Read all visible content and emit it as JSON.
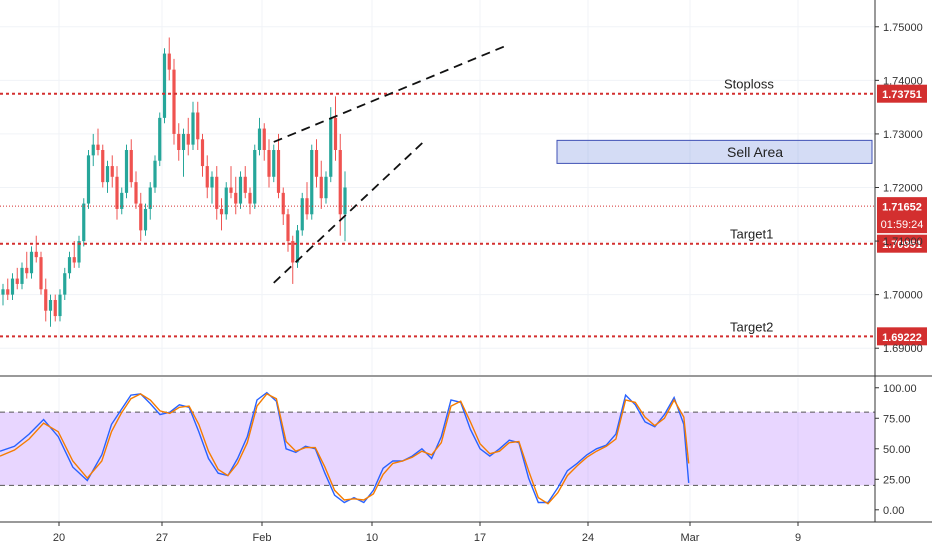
{
  "chart_data": {
    "type": "candlestick",
    "main": {
      "y_range": [
        1.685,
        1.755
      ],
      "y_ticks": [
        1.69,
        1.7,
        1.71,
        1.72,
        1.73,
        1.74,
        1.75
      ],
      "y_tick_labels": [
        "1.69000",
        "1.70000",
        "1.71000",
        "1.72000",
        "1.73000",
        "1.74000",
        "1.75000"
      ],
      "x_labels": [
        "20",
        "27",
        "Feb",
        "10",
        "17",
        "24",
        "Mar",
        "9"
      ],
      "candles": [
        [
          1.7,
          1.702,
          1.698,
          1.701
        ],
        [
          1.701,
          1.703,
          1.699,
          1.7
        ],
        [
          1.7,
          1.704,
          1.699,
          1.703
        ],
        [
          1.703,
          1.705,
          1.701,
          1.702
        ],
        [
          1.702,
          1.706,
          1.701,
          1.705
        ],
        [
          1.705,
          1.708,
          1.703,
          1.704
        ],
        [
          1.704,
          1.709,
          1.703,
          1.708
        ],
        [
          1.708,
          1.711,
          1.706,
          1.707
        ],
        [
          1.707,
          1.708,
          1.7,
          1.701
        ],
        [
          1.701,
          1.703,
          1.695,
          1.697
        ],
        [
          1.697,
          1.7,
          1.694,
          1.699
        ],
        [
          1.699,
          1.7,
          1.695,
          1.696
        ],
        [
          1.696,
          1.701,
          1.695,
          1.7
        ],
        [
          1.7,
          1.705,
          1.699,
          1.704
        ],
        [
          1.704,
          1.708,
          1.703,
          1.707
        ],
        [
          1.707,
          1.71,
          1.705,
          1.706
        ],
        [
          1.706,
          1.711,
          1.705,
          1.71
        ],
        [
          1.71,
          1.718,
          1.709,
          1.717
        ],
        [
          1.717,
          1.727,
          1.716,
          1.726
        ],
        [
          1.726,
          1.73,
          1.724,
          1.728
        ],
        [
          1.728,
          1.731,
          1.726,
          1.727
        ],
        [
          1.727,
          1.728,
          1.72,
          1.721
        ],
        [
          1.721,
          1.725,
          1.719,
          1.724
        ],
        [
          1.724,
          1.726,
          1.72,
          1.722
        ],
        [
          1.722,
          1.724,
          1.714,
          1.716
        ],
        [
          1.716,
          1.72,
          1.715,
          1.719
        ],
        [
          1.719,
          1.728,
          1.718,
          1.727
        ],
        [
          1.727,
          1.729,
          1.72,
          1.721
        ],
        [
          1.721,
          1.723,
          1.716,
          1.717
        ],
        [
          1.717,
          1.719,
          1.71,
          1.712
        ],
        [
          1.712,
          1.717,
          1.711,
          1.716
        ],
        [
          1.716,
          1.721,
          1.714,
          1.72
        ],
        [
          1.72,
          1.726,
          1.719,
          1.725
        ],
        [
          1.725,
          1.734,
          1.724,
          1.733
        ],
        [
          1.733,
          1.746,
          1.732,
          1.745
        ],
        [
          1.745,
          1.748,
          1.74,
          1.742
        ],
        [
          1.742,
          1.744,
          1.728,
          1.73
        ],
        [
          1.73,
          1.732,
          1.725,
          1.727
        ],
        [
          1.727,
          1.731,
          1.722,
          1.73
        ],
        [
          1.73,
          1.733,
          1.726,
          1.728
        ],
        [
          1.728,
          1.736,
          1.727,
          1.734
        ],
        [
          1.734,
          1.736,
          1.727,
          1.729
        ],
        [
          1.729,
          1.73,
          1.722,
          1.724
        ],
        [
          1.724,
          1.726,
          1.718,
          1.72
        ],
        [
          1.72,
          1.723,
          1.717,
          1.722
        ],
        [
          1.722,
          1.724,
          1.714,
          1.716
        ],
        [
          1.716,
          1.718,
          1.712,
          1.715
        ],
        [
          1.715,
          1.721,
          1.714,
          1.72
        ],
        [
          1.72,
          1.724,
          1.718,
          1.719
        ],
        [
          1.719,
          1.722,
          1.715,
          1.717
        ],
        [
          1.717,
          1.723,
          1.716,
          1.722
        ],
        [
          1.722,
          1.724,
          1.718,
          1.719
        ],
        [
          1.719,
          1.72,
          1.715,
          1.717
        ],
        [
          1.717,
          1.728,
          1.716,
          1.727
        ],
        [
          1.727,
          1.733,
          1.726,
          1.731
        ],
        [
          1.731,
          1.732,
          1.725,
          1.727
        ],
        [
          1.727,
          1.729,
          1.72,
          1.722
        ],
        [
          1.722,
          1.728,
          1.721,
          1.727
        ],
        [
          1.727,
          1.73,
          1.718,
          1.719
        ],
        [
          1.719,
          1.72,
          1.713,
          1.715
        ],
        [
          1.715,
          1.716,
          1.708,
          1.71
        ],
        [
          1.71,
          1.711,
          1.702,
          1.706
        ],
        [
          1.706,
          1.713,
          1.705,
          1.712
        ],
        [
          1.712,
          1.719,
          1.711,
          1.718
        ],
        [
          1.718,
          1.721,
          1.714,
          1.715
        ],
        [
          1.715,
          1.728,
          1.714,
          1.727
        ],
        [
          1.727,
          1.729,
          1.72,
          1.722
        ],
        [
          1.722,
          1.725,
          1.716,
          1.718
        ],
        [
          1.718,
          1.723,
          1.717,
          1.722
        ],
        [
          1.722,
          1.735,
          1.721,
          1.733
        ],
        [
          1.733,
          1.737,
          1.725,
          1.727
        ],
        [
          1.727,
          1.73,
          1.711,
          1.715
        ],
        [
          1.715,
          1.723,
          1.71,
          1.72
        ]
      ],
      "levels": [
        {
          "name": "stoploss",
          "value": 1.73751,
          "tag": "1.73751",
          "label": "Stoploss",
          "color": "#d32f2f"
        },
        {
          "name": "target1",
          "value": 1.70951,
          "tag": "1.70951",
          "label": "Target1",
          "color": "#d32f2f"
        },
        {
          "name": "target2",
          "value": 1.69222,
          "tag": "1.69222",
          "label": "Target2",
          "color": "#d32f2f"
        }
      ],
      "last_price": {
        "value": 1.71652,
        "tag": "1.71652",
        "countdown": "01:59:24",
        "color": "#d32f2f"
      },
      "zone": {
        "label": "Sell Area",
        "top": 1.7288,
        "bottom": 1.7245
      },
      "channel": {
        "lower": [
          [
            57,
            1.7022
          ],
          [
            88.5,
            1.7285
          ]
        ],
        "upper": [
          [
            57,
            1.7285
          ],
          [
            106,
            1.7465
          ]
        ]
      }
    },
    "oscillator": {
      "y_range": [
        -10,
        108
      ],
      "y_ticks": [
        0,
        25,
        50,
        75,
        100
      ],
      "y_tick_labels": [
        "0.00",
        "25.00",
        "50.00",
        "75.00",
        "100.00"
      ],
      "band": [
        20,
        80
      ],
      "series": [
        {
          "color": "#2962ff",
          "values": [
            [
              0,
              48
            ],
            [
              3,
              52
            ],
            [
              6,
              62
            ],
            [
              9,
              74
            ],
            [
              12,
              60
            ],
            [
              15,
              35
            ],
            [
              18,
              24
            ],
            [
              21,
              45
            ],
            [
              23,
              70
            ],
            [
              25,
              82
            ],
            [
              27,
              94
            ],
            [
              29,
              95
            ],
            [
              31,
              87
            ],
            [
              33,
              78
            ],
            [
              35,
              80
            ],
            [
              37,
              86
            ],
            [
              39,
              84
            ],
            [
              41,
              64
            ],
            [
              43,
              42
            ],
            [
              45,
              30
            ],
            [
              47,
              28
            ],
            [
              49,
              42
            ],
            [
              51,
              60
            ],
            [
              53,
              90
            ],
            [
              55,
              96
            ],
            [
              57,
              89
            ],
            [
              59,
              50
            ],
            [
              61,
              47
            ],
            [
              63,
              52
            ],
            [
              65,
              50
            ],
            [
              67,
              30
            ],
            [
              69,
              12
            ],
            [
              71,
              6
            ],
            [
              73,
              10
            ],
            [
              75,
              6
            ],
            [
              77,
              16
            ],
            [
              79,
              34
            ],
            [
              81,
              40
            ],
            [
              83,
              40
            ],
            [
              85,
              44
            ],
            [
              87,
              50
            ],
            [
              89,
              42
            ],
            [
              91,
              60
            ],
            [
              93,
              90
            ],
            [
              95,
              88
            ],
            [
              97,
              66
            ],
            [
              99,
              50
            ],
            [
              101,
              44
            ],
            [
              103,
              50
            ],
            [
              105,
              57
            ],
            [
              107,
              55
            ],
            [
              109,
              26
            ],
            [
              111,
              6
            ],
            [
              113,
              6
            ],
            [
              115,
              18
            ],
            [
              117,
              32
            ],
            [
              119,
              38
            ],
            [
              121,
              45
            ],
            [
              123,
              50
            ],
            [
              125,
              53
            ],
            [
              127,
              62
            ],
            [
              129,
              94
            ],
            [
              131,
              86
            ],
            [
              133,
              72
            ],
            [
              135,
              68
            ],
            [
              137,
              78
            ],
            [
              139,
              92
            ],
            [
              141,
              70
            ],
            [
              142,
              22
            ]
          ]
        },
        {
          "color": "#f57c00",
          "values": [
            [
              0,
              44
            ],
            [
              3,
              49
            ],
            [
              6,
              58
            ],
            [
              9,
              71
            ],
            [
              12,
              64
            ],
            [
              15,
              40
            ],
            [
              18,
              26
            ],
            [
              21,
              40
            ],
            [
              23,
              64
            ],
            [
              25,
              79
            ],
            [
              27,
              91
            ],
            [
              29,
              95
            ],
            [
              31,
              90
            ],
            [
              33,
              81
            ],
            [
              35,
              79
            ],
            [
              37,
              84
            ],
            [
              39,
              85
            ],
            [
              41,
              70
            ],
            [
              43,
              48
            ],
            [
              45,
              33
            ],
            [
              47,
              28
            ],
            [
              49,
              38
            ],
            [
              51,
              55
            ],
            [
              53,
              85
            ],
            [
              55,
              95
            ],
            [
              57,
              91
            ],
            [
              59,
              56
            ],
            [
              61,
              48
            ],
            [
              63,
              51
            ],
            [
              65,
              51
            ],
            [
              67,
              35
            ],
            [
              69,
              16
            ],
            [
              71,
              8
            ],
            [
              73,
              9
            ],
            [
              75,
              8
            ],
            [
              77,
              13
            ],
            [
              79,
              29
            ],
            [
              81,
              38
            ],
            [
              83,
              40
            ],
            [
              85,
              43
            ],
            [
              87,
              48
            ],
            [
              89,
              45
            ],
            [
              91,
              55
            ],
            [
              93,
              85
            ],
            [
              95,
              89
            ],
            [
              97,
              72
            ],
            [
              99,
              54
            ],
            [
              101,
              46
            ],
            [
              103,
              48
            ],
            [
              105,
              55
            ],
            [
              107,
              56
            ],
            [
              109,
              32
            ],
            [
              111,
              10
            ],
            [
              113,
              5
            ],
            [
              115,
              14
            ],
            [
              117,
              28
            ],
            [
              119,
              36
            ],
            [
              121,
              43
            ],
            [
              123,
              48
            ],
            [
              125,
              52
            ],
            [
              127,
              58
            ],
            [
              129,
              90
            ],
            [
              131,
              88
            ],
            [
              133,
              76
            ],
            [
              135,
              69
            ],
            [
              137,
              75
            ],
            [
              139,
              90
            ],
            [
              141,
              76
            ],
            [
              142,
              38
            ]
          ]
        }
      ]
    }
  }
}
